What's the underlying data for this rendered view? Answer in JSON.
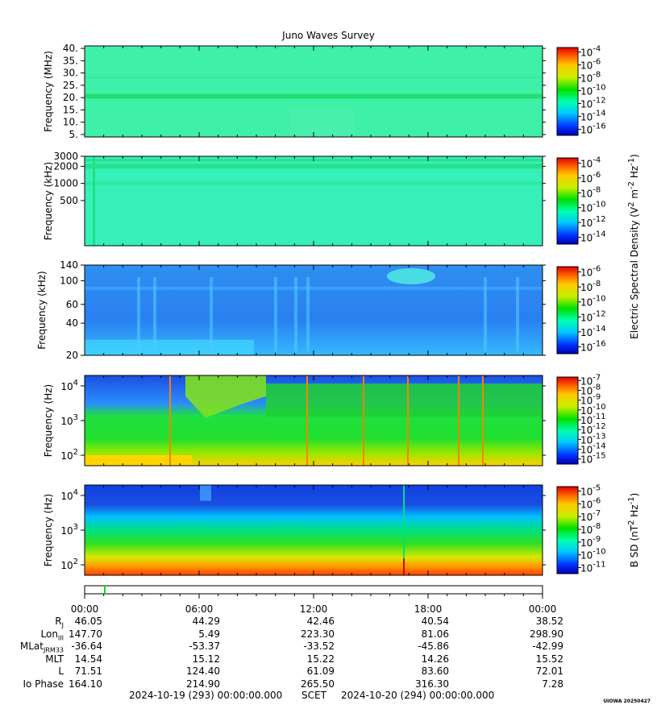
{
  "title": "Juno Waves Survey",
  "colors": {
    "bg_mhz": "#3ff0a8",
    "bg_khz_hi": "#35f0b8",
    "bg_khz_lo": "#2f8ff0",
    "low_hz": "#ffd400",
    "band_green": "#1fe040",
    "deep_blue": "#1a4fe0",
    "b_red": "#ff4000",
    "b_orange": "#ff9a00",
    "green_marker": "#00e000"
  },
  "chart_data": [
    {
      "type": "heatmap",
      "name": "E-field MHz",
      "ylabel": "Frequency (MHz)",
      "yscale": "linear",
      "ylim": [
        4,
        41
      ],
      "yticks": [
        {
          "v": 40,
          "label": "40."
        },
        {
          "v": 35,
          "label": "35."
        },
        {
          "v": 30,
          "label": "30."
        },
        {
          "v": 25,
          "label": "25."
        },
        {
          "v": 20,
          "label": "20."
        },
        {
          "v": 15,
          "label": "15."
        },
        {
          "v": 10,
          "label": "10."
        },
        {
          "v": 5,
          "label": "5."
        }
      ],
      "colorbar": {
        "labels": [
          {
            "base": "10",
            "exp": "-4"
          },
          {
            "base": "10",
            "exp": "-6"
          },
          {
            "base": "10",
            "exp": "-8"
          },
          {
            "base": "10",
            "exp": "-10"
          },
          {
            "base": "10",
            "exp": "-12"
          },
          {
            "base": "10",
            "exp": "-14"
          },
          {
            "base": "10",
            "exp": "-16"
          }
        ]
      }
    },
    {
      "type": "heatmap",
      "name": "E-field kHz",
      "ylabel": "Frequency (kHz)",
      "yscale": "log",
      "ylim": [
        80,
        3000
      ],
      "yticks": [
        {
          "v": 3000,
          "label": "3000"
        },
        {
          "v": 2000,
          "label": "2000"
        },
        {
          "v": 1000,
          "label": "1000"
        },
        {
          "v": 500,
          "label": "500"
        }
      ],
      "colorbar": {
        "labels": [
          {
            "base": "10",
            "exp": "-4"
          },
          {
            "base": "10",
            "exp": "-6"
          },
          {
            "base": "10",
            "exp": "-8"
          },
          {
            "base": "10",
            "exp": "-10"
          },
          {
            "base": "10",
            "exp": "-12"
          },
          {
            "base": "10",
            "exp": "-14"
          }
        ]
      }
    },
    {
      "type": "heatmap",
      "name": "E-field 20-140 kHz",
      "ylabel": "Frequency (kHz)",
      "yscale": "log",
      "ylim": [
        20,
        140
      ],
      "yticks": [
        {
          "v": 140,
          "label": "140"
        },
        {
          "v": 100,
          "label": "100"
        },
        {
          "v": 60,
          "label": "60"
        },
        {
          "v": 40,
          "label": "40"
        },
        {
          "v": 20,
          "label": "20"
        }
      ],
      "colorbar": {
        "labels": [
          {
            "base": "10",
            "exp": "-6"
          },
          {
            "base": "10",
            "exp": "-8"
          },
          {
            "base": "10",
            "exp": "-10"
          },
          {
            "base": "10",
            "exp": "-12"
          },
          {
            "base": "10",
            "exp": "-14"
          },
          {
            "base": "10",
            "exp": "-16"
          }
        ]
      }
    },
    {
      "type": "heatmap",
      "name": "E-field Hz",
      "ylabel": "Frequency (Hz)",
      "yscale": "log",
      "ylim": [
        50,
        20000
      ],
      "yticks": [
        {
          "v": 10000,
          "label": "10",
          "exp": "4"
        },
        {
          "v": 1000,
          "label": "10",
          "exp": "3"
        },
        {
          "v": 100,
          "label": "10",
          "exp": "2"
        }
      ],
      "colorbar": {
        "labels": [
          {
            "base": "10",
            "exp": "-7"
          },
          {
            "base": "10",
            "exp": "-8"
          },
          {
            "base": "10",
            "exp": "-9"
          },
          {
            "base": "10",
            "exp": "-10"
          },
          {
            "base": "10",
            "exp": "-11"
          },
          {
            "base": "10",
            "exp": "-12"
          },
          {
            "base": "10",
            "exp": "-13"
          },
          {
            "base": "10",
            "exp": "-14"
          },
          {
            "base": "10",
            "exp": "-15"
          }
        ]
      }
    },
    {
      "type": "heatmap",
      "name": "B-field Hz",
      "ylabel": "Frequency (Hz)",
      "yscale": "log",
      "ylim": [
        50,
        20000
      ],
      "yticks": [
        {
          "v": 10000,
          "label": "10",
          "exp": "4"
        },
        {
          "v": 1000,
          "label": "10",
          "exp": "3"
        },
        {
          "v": 100,
          "label": "10",
          "exp": "2"
        }
      ],
      "colorbar": {
        "labels": [
          {
            "base": "10",
            "exp": "-5"
          },
          {
            "base": "10",
            "exp": "-6"
          },
          {
            "base": "10",
            "exp": "-7"
          },
          {
            "base": "10",
            "exp": "-8"
          },
          {
            "base": "10",
            "exp": "-9"
          },
          {
            "base": "10",
            "exp": "-10"
          },
          {
            "base": "10",
            "exp": "-11"
          }
        ]
      }
    }
  ],
  "e_colorbar_title": {
    "pre": "Electric Spectral Density (V",
    "sup1": "2",
    "mid": " m",
    "sup2": "-2",
    "mid2": " Hz",
    "sup3": "-1",
    "post": ")"
  },
  "b_colorbar_title": {
    "pre": "B SD (nT",
    "sup1": "2",
    "mid": " Hz",
    "sup2": "-1",
    "post": ")"
  },
  "time_axis": {
    "ticks": [
      "00:00",
      "06:00",
      "12:00",
      "18:00",
      "00:00"
    ]
  },
  "ephemeris": [
    {
      "label": "R",
      "sub": "J",
      "values": [
        "46.05",
        "44.29",
        "42.46",
        "40.54",
        "38.52"
      ]
    },
    {
      "label": "Lon",
      "sub": "III",
      "values": [
        "147.70",
        "5.49",
        "223.30",
        "81.06",
        "298.90"
      ]
    },
    {
      "label": "MLat",
      "sub": "JRM33",
      "values": [
        "-36.64",
        "-53.37",
        "-33.52",
        "-45.86",
        "-42.99"
      ]
    },
    {
      "label": "MLT",
      "sub": "",
      "values": [
        "14.54",
        "15.12",
        "15.22",
        "14.26",
        "15.52"
      ]
    },
    {
      "label": "L",
      "sub": "",
      "values": [
        "71.51",
        "124.40",
        "61.09",
        "83.60",
        "72.01"
      ]
    },
    {
      "label": "Io Phase",
      "sub": "",
      "values": [
        "164.10",
        "214.90",
        "265.50",
        "316.30",
        "7.28"
      ]
    }
  ],
  "footer": {
    "start": "2024-10-19 (293) 00:00:00.000",
    "scet": "SCET",
    "end": "2024-10-20 (294) 00:00:00.000"
  },
  "stamp": "UIOWA 20250427"
}
